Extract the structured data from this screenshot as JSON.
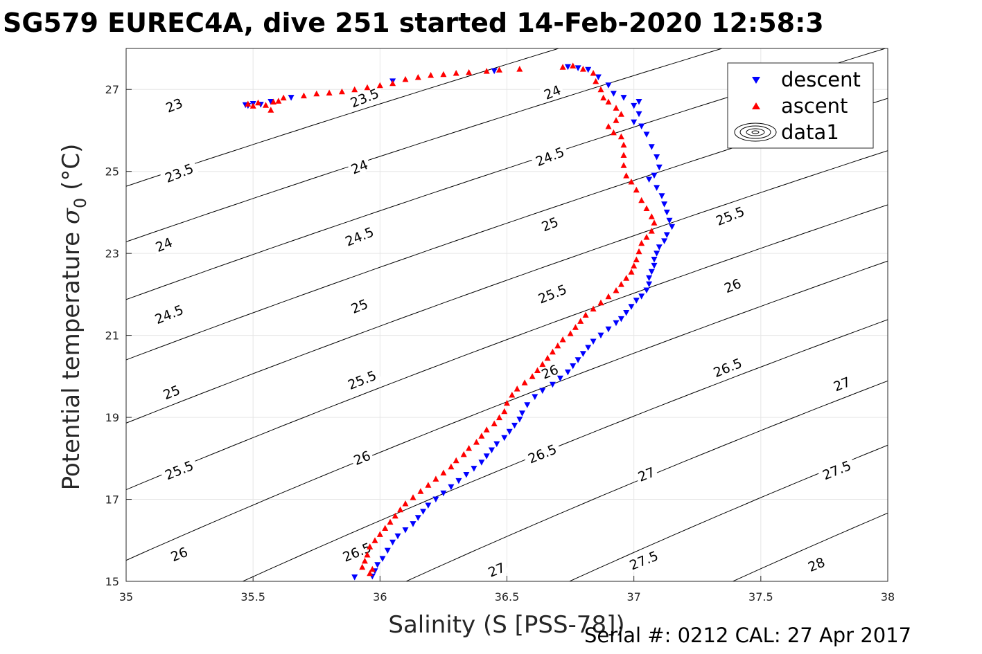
{
  "title": "SG579 EUREC4A, dive 251 started 14-Feb-2020 12:58:3",
  "footer": "Serial #: 0212  CAL: 27 Apr 2017",
  "chart_data": {
    "type": "scatter",
    "xlabel": "Salinity (S [PSS-78])",
    "ylabel_main": "Potential temperature ",
    "ylabel_sigma": "σ",
    "ylabel_sub": "0",
    "ylabel_unit": " (°C)",
    "xlim": [
      35,
      38
    ],
    "ylim": [
      15,
      28
    ],
    "xticks": [
      35,
      35.5,
      36,
      36.5,
      37,
      37.5,
      38
    ],
    "xtick_labels": [
      "35",
      "35.5",
      "36",
      "36.5",
      "37",
      "37.5",
      "38"
    ],
    "yticks": [
      15,
      17,
      19,
      21,
      23,
      25,
      27
    ],
    "ytick_labels": [
      "15",
      "17",
      "19",
      "21",
      "23",
      "25",
      "27"
    ],
    "grid": true,
    "legend_position": "top-right",
    "legend": [
      "descent",
      "ascent",
      "data1"
    ],
    "colors": {
      "descent": "#0000ff",
      "ascent": "#ff0000",
      "contour": "#000000"
    },
    "contours": {
      "levels": [
        22.5,
        23,
        23.5,
        24,
        24.5,
        25,
        25.5,
        26,
        26.5,
        27,
        27.5,
        28,
        28.5
      ],
      "labels": [
        {
          "text": "23",
          "s": 35.19,
          "t": 26.6
        },
        {
          "text": "23.5",
          "s": 35.21,
          "t": 24.95
        },
        {
          "text": "24",
          "s": 35.15,
          "t": 23.2
        },
        {
          "text": "24.5",
          "s": 35.17,
          "t": 21.5
        },
        {
          "text": "25",
          "s": 35.18,
          "t": 19.6
        },
        {
          "text": "25.5",
          "s": 35.21,
          "t": 17.7
        },
        {
          "text": "26",
          "s": 35.21,
          "t": 15.65
        },
        {
          "text": "23.5",
          "s": 35.94,
          "t": 26.78
        },
        {
          "text": "24",
          "s": 35.92,
          "t": 25.1
        },
        {
          "text": "24.5",
          "s": 35.92,
          "t": 23.4
        },
        {
          "text": "25",
          "s": 35.92,
          "t": 21.7
        },
        {
          "text": "25.5",
          "s": 35.93,
          "t": 19.9
        },
        {
          "text": "26",
          "s": 35.93,
          "t": 18.0
        },
        {
          "text": "26.5",
          "s": 35.91,
          "t": 15.7
        },
        {
          "text": "27",
          "s": 36.46,
          "t": 15.27
        },
        {
          "text": "24",
          "s": 36.68,
          "t": 26.92
        },
        {
          "text": "24.5",
          "s": 36.67,
          "t": 25.35
        },
        {
          "text": "25",
          "s": 36.67,
          "t": 23.7
        },
        {
          "text": "25.5",
          "s": 36.68,
          "t": 22.0
        },
        {
          "text": "26",
          "s": 36.67,
          "t": 20.1
        },
        {
          "text": "26.5",
          "s": 36.64,
          "t": 18.1
        },
        {
          "text": "27",
          "s": 37.05,
          "t": 17.6
        },
        {
          "text": "27.5",
          "s": 37.04,
          "t": 15.5
        },
        {
          "text": "25.5",
          "s": 37.38,
          "t": 23.9
        },
        {
          "text": "26",
          "s": 37.39,
          "t": 22.2
        },
        {
          "text": "26.5",
          "s": 37.37,
          "t": 20.2
        },
        {
          "text": "27",
          "s": 37.82,
          "t": 19.8
        },
        {
          "text": "27.5",
          "s": 37.8,
          "t": 17.7
        },
        {
          "text": "28",
          "s": 37.72,
          "t": 15.4
        }
      ]
    },
    "series": [
      {
        "name": "descent",
        "marker": "triangle-down",
        "points": [
          [
            35.47,
            26.62
          ],
          [
            35.48,
            26.6
          ],
          [
            35.5,
            26.65
          ],
          [
            35.53,
            26.63
          ],
          [
            35.57,
            26.7
          ],
          [
            35.65,
            26.8
          ],
          [
            36.05,
            27.2
          ],
          [
            36.45,
            27.45
          ],
          [
            36.74,
            27.55
          ],
          [
            36.78,
            27.52
          ],
          [
            36.82,
            27.48
          ],
          [
            36.86,
            27.3
          ],
          [
            36.9,
            27.1
          ],
          [
            36.92,
            26.9
          ],
          [
            36.96,
            26.8
          ],
          [
            37.0,
            26.6
          ],
          [
            37.02,
            26.7
          ],
          [
            37.02,
            26.4
          ],
          [
            37.0,
            26.2
          ],
          [
            37.03,
            26.1
          ],
          [
            37.05,
            25.9
          ],
          [
            37.07,
            25.6
          ],
          [
            37.09,
            25.35
          ],
          [
            37.1,
            25.1
          ],
          [
            37.08,
            24.9
          ],
          [
            37.06,
            24.8
          ],
          [
            37.09,
            24.6
          ],
          [
            37.11,
            24.4
          ],
          [
            37.12,
            24.2
          ],
          [
            37.13,
            24.0
          ],
          [
            37.14,
            23.8
          ],
          [
            37.15,
            23.65
          ],
          [
            37.13,
            23.45
          ],
          [
            37.12,
            23.3
          ],
          [
            37.1,
            23.15
          ],
          [
            37.09,
            23.0
          ],
          [
            37.08,
            22.85
          ],
          [
            37.08,
            22.7
          ],
          [
            37.07,
            22.55
          ],
          [
            37.06,
            22.4
          ],
          [
            37.06,
            22.25
          ],
          [
            37.05,
            22.1
          ],
          [
            37.03,
            21.95
          ],
          [
            37.01,
            21.85
          ],
          [
            36.99,
            21.7
          ],
          [
            36.97,
            21.55
          ],
          [
            36.95,
            21.4
          ],
          [
            36.93,
            21.3
          ],
          [
            36.9,
            21.15
          ],
          [
            36.87,
            21.0
          ],
          [
            36.84,
            20.85
          ],
          [
            36.82,
            20.7
          ],
          [
            36.8,
            20.55
          ],
          [
            36.78,
            20.4
          ],
          [
            36.76,
            20.25
          ],
          [
            36.74,
            20.1
          ],
          [
            36.71,
            19.95
          ],
          [
            36.68,
            19.8
          ],
          [
            36.64,
            19.65
          ],
          [
            36.61,
            19.5
          ],
          [
            36.58,
            19.3
          ],
          [
            36.56,
            19.1
          ],
          [
            36.55,
            18.95
          ],
          [
            36.53,
            18.8
          ],
          [
            36.51,
            18.65
          ],
          [
            36.49,
            18.5
          ],
          [
            36.46,
            18.35
          ],
          [
            36.44,
            18.2
          ],
          [
            36.42,
            18.05
          ],
          [
            36.4,
            17.9
          ],
          [
            36.37,
            17.75
          ],
          [
            36.34,
            17.6
          ],
          [
            36.31,
            17.45
          ],
          [
            36.28,
            17.3
          ],
          [
            36.25,
            17.15
          ],
          [
            36.22,
            17.0
          ],
          [
            36.19,
            16.85
          ],
          [
            36.17,
            16.7
          ],
          [
            36.15,
            16.55
          ],
          [
            36.13,
            16.4
          ],
          [
            36.1,
            16.25
          ],
          [
            36.07,
            16.1
          ],
          [
            36.05,
            15.95
          ],
          [
            36.03,
            15.75
          ],
          [
            36.01,
            15.55
          ],
          [
            35.99,
            15.4
          ],
          [
            35.98,
            15.25
          ],
          [
            35.97,
            15.12
          ],
          [
            35.9,
            15.1
          ]
        ]
      },
      {
        "name": "ascent",
        "marker": "triangle-up",
        "points": [
          [
            35.48,
            26.65
          ],
          [
            35.5,
            26.6
          ],
          [
            35.52,
            26.68
          ],
          [
            35.55,
            26.62
          ],
          [
            35.58,
            26.7
          ],
          [
            35.6,
            26.72
          ],
          [
            35.57,
            26.5
          ],
          [
            35.62,
            26.8
          ],
          [
            35.7,
            26.85
          ],
          [
            35.75,
            26.9
          ],
          [
            35.8,
            26.92
          ],
          [
            35.85,
            26.95
          ],
          [
            35.9,
            27.0
          ],
          [
            35.95,
            27.05
          ],
          [
            36.0,
            27.1
          ],
          [
            36.05,
            27.15
          ],
          [
            36.1,
            27.25
          ],
          [
            36.15,
            27.3
          ],
          [
            36.2,
            27.35
          ],
          [
            36.25,
            27.37
          ],
          [
            36.3,
            27.4
          ],
          [
            36.35,
            27.42
          ],
          [
            36.42,
            27.45
          ],
          [
            36.47,
            27.48
          ],
          [
            36.55,
            27.5
          ],
          [
            36.72,
            27.55
          ],
          [
            36.76,
            27.58
          ],
          [
            36.8,
            27.5
          ],
          [
            36.84,
            27.4
          ],
          [
            36.85,
            27.2
          ],
          [
            36.87,
            27.0
          ],
          [
            36.88,
            26.8
          ],
          [
            36.9,
            26.7
          ],
          [
            36.93,
            26.55
          ],
          [
            36.95,
            26.4
          ],
          [
            36.93,
            26.25
          ],
          [
            36.9,
            26.1
          ],
          [
            36.92,
            25.95
          ],
          [
            36.95,
            25.85
          ],
          [
            36.96,
            25.65
          ],
          [
            36.96,
            25.4
          ],
          [
            36.96,
            25.15
          ],
          [
            36.97,
            24.9
          ],
          [
            36.99,
            24.75
          ],
          [
            37.01,
            24.55
          ],
          [
            37.03,
            24.3
          ],
          [
            37.05,
            24.1
          ],
          [
            37.07,
            23.9
          ],
          [
            37.08,
            23.75
          ],
          [
            37.07,
            23.55
          ],
          [
            37.05,
            23.4
          ],
          [
            37.03,
            23.25
          ],
          [
            37.02,
            23.05
          ],
          [
            37.01,
            22.85
          ],
          [
            37.0,
            22.7
          ],
          [
            36.99,
            22.55
          ],
          [
            36.97,
            22.4
          ],
          [
            36.95,
            22.25
          ],
          [
            36.93,
            22.1
          ],
          [
            36.9,
            21.95
          ],
          [
            36.87,
            21.8
          ],
          [
            36.84,
            21.65
          ],
          [
            36.81,
            21.5
          ],
          [
            36.79,
            21.35
          ],
          [
            36.77,
            21.2
          ],
          [
            36.75,
            21.05
          ],
          [
            36.72,
            20.9
          ],
          [
            36.7,
            20.75
          ],
          [
            36.68,
            20.6
          ],
          [
            36.66,
            20.45
          ],
          [
            36.64,
            20.3
          ],
          [
            36.62,
            20.15
          ],
          [
            36.6,
            20.0
          ],
          [
            36.57,
            19.85
          ],
          [
            36.54,
            19.7
          ],
          [
            36.52,
            19.55
          ],
          [
            36.5,
            19.35
          ],
          [
            36.49,
            19.15
          ],
          [
            36.47,
            19.0
          ],
          [
            36.45,
            18.85
          ],
          [
            36.42,
            18.7
          ],
          [
            36.4,
            18.55
          ],
          [
            36.38,
            18.4
          ],
          [
            36.35,
            18.25
          ],
          [
            36.33,
            18.1
          ],
          [
            36.3,
            17.95
          ],
          [
            36.28,
            17.8
          ],
          [
            36.25,
            17.65
          ],
          [
            36.22,
            17.5
          ],
          [
            36.19,
            17.35
          ],
          [
            36.16,
            17.2
          ],
          [
            36.13,
            17.05
          ],
          [
            36.1,
            16.9
          ],
          [
            36.08,
            16.75
          ],
          [
            36.06,
            16.6
          ],
          [
            36.04,
            16.45
          ],
          [
            36.02,
            16.3
          ],
          [
            36.0,
            16.15
          ],
          [
            35.98,
            16.0
          ],
          [
            35.96,
            15.85
          ],
          [
            35.95,
            15.65
          ],
          [
            35.94,
            15.5
          ],
          [
            35.93,
            15.35
          ],
          [
            35.96,
            15.2
          ],
          [
            35.97,
            15.3
          ]
        ]
      }
    ]
  }
}
